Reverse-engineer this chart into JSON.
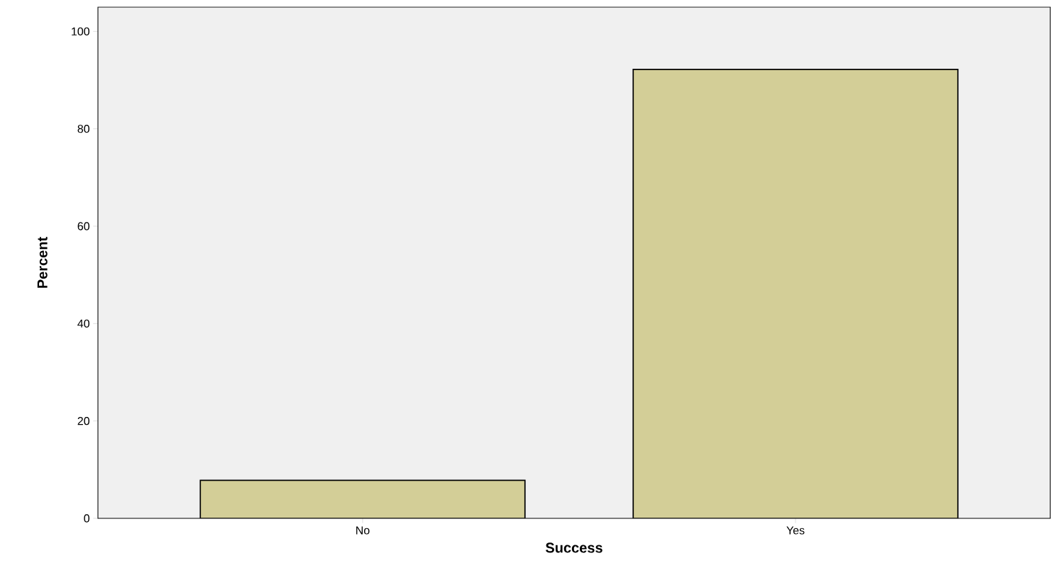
{
  "chart_data": {
    "type": "bar",
    "xlabel": "Success",
    "ylabel": "Percent",
    "categories": [
      "No",
      "Yes"
    ],
    "values": [
      7.8,
      92.2
    ],
    "color": "#d3ce97",
    "ylim": [
      0,
      105
    ],
    "yticks": [
      0,
      20,
      40,
      60,
      80,
      100
    ]
  }
}
